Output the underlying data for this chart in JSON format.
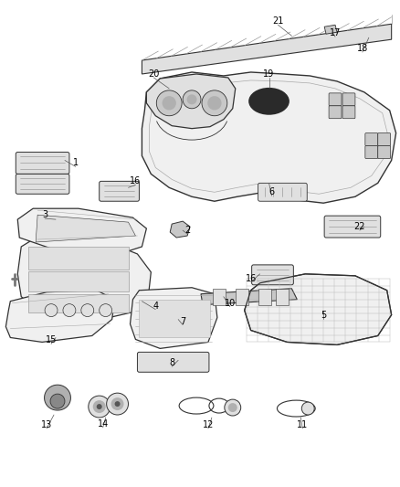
{
  "background_color": "#ffffff",
  "line_color": "#333333",
  "fig_width": 4.38,
  "fig_height": 5.33,
  "dpi": 100,
  "label_fs": 6.5,
  "part_lw": 0.7,
  "detail_lw": 0.4,
  "fill_light": "#f0f0f0",
  "fill_mid": "#e0e0e0",
  "fill_dark": "#c8c8c8",
  "fill_darker": "#b0b0b0",
  "fill_black": "#2a2a2a"
}
